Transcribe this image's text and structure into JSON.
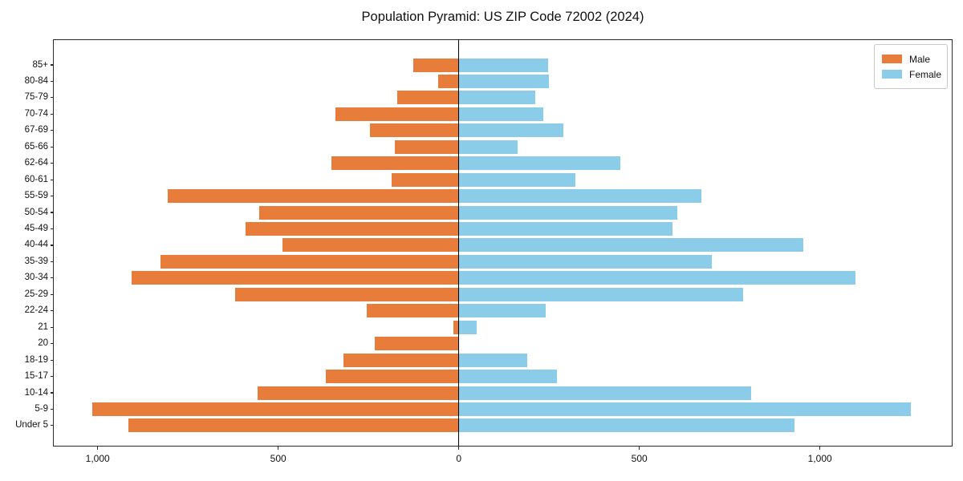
{
  "chart_data": {
    "type": "bar",
    "subtype": "population-pyramid",
    "orientation": "horizontal",
    "male_side": "left",
    "female_side": "right",
    "title": "Population Pyramid: US ZIP Code 72002 (2024)",
    "categories": [
      "85+",
      "80-84",
      "75-79",
      "70-74",
      "67-69",
      "65-66",
      "62-64",
      "60-61",
      "55-59",
      "50-54",
      "45-49",
      "40-44",
      "35-39",
      "30-34",
      "25-29",
      "22-24",
      "21",
      "20",
      "18-19",
      "15-17",
      "10-14",
      "5-9",
      "Under 5"
    ],
    "series": [
      {
        "name": "Male",
        "color": "#E87D3B",
        "values": [
          125,
          58,
          170,
          342,
          245,
          177,
          352,
          185,
          807,
          553,
          590,
          488,
          827,
          905,
          620,
          255,
          16,
          233,
          320,
          368,
          557,
          1014,
          916
        ]
      },
      {
        "name": "Female",
        "color": "#8BCDE8",
        "values": [
          247,
          250,
          211,
          233,
          289,
          164,
          448,
          322,
          672,
          605,
          592,
          953,
          700,
          1099,
          788,
          240,
          50,
          0,
          190,
          272,
          810,
          1252,
          930
        ]
      }
    ],
    "x_ticks": [
      {
        "value": -1000,
        "label": "1,000"
      },
      {
        "value": -500,
        "label": "500"
      },
      {
        "value": 0,
        "label": "0"
      },
      {
        "value": 500,
        "label": "500"
      },
      {
        "value": 1000,
        "label": "1,000"
      }
    ],
    "xlim": [
      -1124,
      1367
    ],
    "grid": false,
    "legend_position": "upper-right",
    "axis_color": "#000000",
    "background": "#FFFFFF"
  }
}
